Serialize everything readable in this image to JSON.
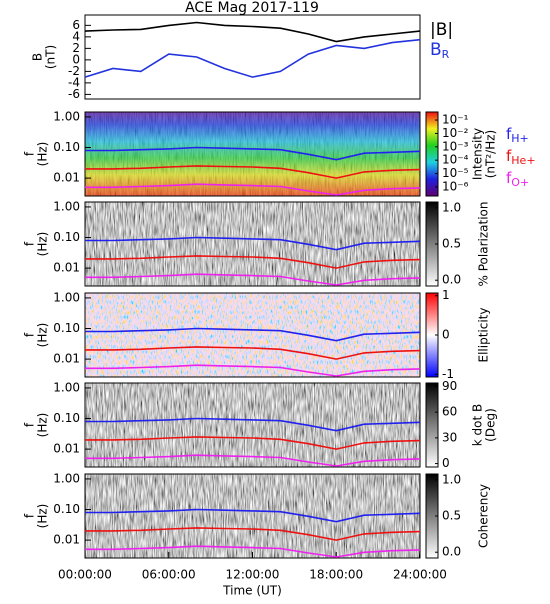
{
  "chart_data": [
    {
      "type": "line",
      "title": "ACE Mag 2017-119",
      "ylabel": [
        "B",
        "(nT)"
      ],
      "x": [
        0,
        2,
        4,
        6,
        8,
        10,
        12,
        14,
        16,
        18,
        20,
        22,
        24
      ],
      "xlim": [
        0,
        24
      ],
      "ylim": [
        -6.8,
        7.8
      ],
      "yticks": [
        -6,
        -4,
        -2,
        0,
        2,
        4,
        6
      ],
      "series": [
        {
          "name": "|B|",
          "color": "#000000",
          "values": [
            5,
            5.2,
            5.3,
            6,
            6.5,
            6,
            5.8,
            5.5,
            4.5,
            3.2,
            4,
            4.5,
            5
          ]
        },
        {
          "name": "B",
          "name_sub": "R",
          "color": "#2233dd",
          "values": [
            -3,
            -1.5,
            -2,
            1,
            0.5,
            -1.5,
            -3,
            -2,
            1,
            2.5,
            2,
            3,
            3.5
          ]
        }
      ]
    },
    {
      "type": "spectrogram",
      "ylabel": [
        "f",
        "(Hz)"
      ],
      "ylog": true,
      "colormap": "rainbow",
      "x": [
        0,
        2,
        4,
        6,
        8,
        10,
        12,
        14,
        16,
        18,
        20,
        22,
        24
      ],
      "xlim": [
        0,
        24
      ],
      "ylim": [
        0.0026,
        1.45
      ],
      "yticks": [
        {
          "value": 1,
          "label": "1.00"
        },
        {
          "value": 0.1,
          "label": "0.10"
        },
        {
          "value": 0.01,
          "label": "0.01"
        }
      ],
      "clabel": [
        "Intensity",
        "(nT²/Hz)"
      ],
      "clog": true,
      "clim": [
        2.1e-07,
        0.4
      ],
      "cticks": [
        {
          "value": 0.1,
          "label": "10⁻¹"
        },
        {
          "value": 0.01,
          "label": "10⁻²"
        },
        {
          "value": 0.001,
          "label": "10⁻³"
        },
        {
          "value": 0.0001,
          "label": "10⁻⁴"
        },
        {
          "value": 1e-05,
          "label": "10⁻⁵"
        },
        {
          "value": 1e-06,
          "label": "10⁻⁶"
        }
      ],
      "series": [
        {
          "name": "f",
          "name_sub": "H+",
          "color": "#2222ee",
          "values": [
            0.08,
            0.08,
            0.085,
            0.09,
            0.1,
            0.095,
            0.09,
            0.085,
            0.06,
            0.04,
            0.065,
            0.07,
            0.075
          ]
        },
        {
          "name": "f",
          "name_sub": "He+",
          "color": "#ee1111",
          "values": [
            0.02,
            0.02,
            0.021,
            0.023,
            0.025,
            0.024,
            0.023,
            0.021,
            0.015,
            0.01,
            0.016,
            0.018,
            0.019
          ]
        },
        {
          "name": "f",
          "name_sub": "O+",
          "color": "#ee22ee",
          "values": [
            0.005,
            0.005,
            0.0053,
            0.0057,
            0.0063,
            0.006,
            0.0057,
            0.0053,
            0.0038,
            0.0028,
            0.004,
            0.0045,
            0.0048
          ]
        }
      ]
    },
    {
      "type": "spectrogram",
      "ylabel": [
        "f",
        "(Hz)"
      ],
      "ylog": true,
      "colormap": "gray",
      "x": [
        0,
        2,
        4,
        6,
        8,
        10,
        12,
        14,
        16,
        18,
        20,
        22,
        24
      ],
      "xlim": [
        0,
        24
      ],
      "ylim": [
        0.0026,
        1.45
      ],
      "yticks": [
        {
          "value": 1,
          "label": "1.00"
        },
        {
          "value": 0.1,
          "label": "0.10"
        },
        {
          "value": 0.01,
          "label": "0.01"
        }
      ],
      "clabel": [
        "% Polarization"
      ],
      "clim": [
        -0.08,
        1.08
      ],
      "cticks": [
        {
          "value": 1,
          "label": "1.0"
        },
        0.5,
        {
          "value": 0,
          "label": "0.0"
        }
      ],
      "series": [
        {
          "color": "#2222ee",
          "values": [
            0.08,
            0.08,
            0.085,
            0.09,
            0.1,
            0.095,
            0.09,
            0.085,
            0.06,
            0.04,
            0.065,
            0.07,
            0.075
          ]
        },
        {
          "color": "#ee1111",
          "values": [
            0.02,
            0.02,
            0.021,
            0.023,
            0.025,
            0.024,
            0.023,
            0.021,
            0.015,
            0.01,
            0.016,
            0.018,
            0.019
          ]
        },
        {
          "color": "#ee22ee",
          "values": [
            0.005,
            0.005,
            0.0053,
            0.0057,
            0.0063,
            0.006,
            0.0057,
            0.0053,
            0.0038,
            0.0028,
            0.004,
            0.0045,
            0.0048
          ]
        }
      ]
    },
    {
      "type": "spectrogram",
      "ylabel": [
        "f",
        "(Hz)"
      ],
      "ylog": true,
      "colormap": "bwr",
      "x": [
        0,
        2,
        4,
        6,
        8,
        10,
        12,
        14,
        16,
        18,
        20,
        22,
        24
      ],
      "xlim": [
        0,
        24
      ],
      "ylim": [
        0.0026,
        1.45
      ],
      "yticks": [
        {
          "value": 1,
          "label": "1.00"
        },
        {
          "value": 0.1,
          "label": "0.10"
        },
        {
          "value": 0.01,
          "label": "0.01"
        }
      ],
      "clabel": [
        "Ellipticity"
      ],
      "clim": [
        -1.07,
        1.07
      ],
      "cticks": [
        1,
        0,
        -1
      ],
      "series": [
        {
          "color": "#2222ee",
          "values": [
            0.08,
            0.08,
            0.085,
            0.09,
            0.1,
            0.095,
            0.09,
            0.085,
            0.06,
            0.04,
            0.065,
            0.07,
            0.075
          ]
        },
        {
          "color": "#ee1111",
          "values": [
            0.02,
            0.02,
            0.021,
            0.023,
            0.025,
            0.024,
            0.023,
            0.021,
            0.015,
            0.01,
            0.016,
            0.018,
            0.019
          ]
        },
        {
          "color": "#ee22ee",
          "values": [
            0.005,
            0.005,
            0.0053,
            0.0057,
            0.0063,
            0.006,
            0.0057,
            0.0053,
            0.0038,
            0.0028,
            0.004,
            0.0045,
            0.0048
          ]
        }
      ]
    },
    {
      "type": "spectrogram",
      "ylabel": [
        "f",
        "(Hz)"
      ],
      "ylog": true,
      "colormap": "gray",
      "x": [
        0,
        2,
        4,
        6,
        8,
        10,
        12,
        14,
        16,
        18,
        20,
        22,
        24
      ],
      "xlim": [
        0,
        24
      ],
      "ylim": [
        0.0026,
        1.45
      ],
      "yticks": [
        {
          "value": 1,
          "label": "1.00"
        },
        {
          "value": 0.1,
          "label": "0.10"
        },
        {
          "value": 0.01,
          "label": "0.01"
        }
      ],
      "clabel": [
        "k dot B",
        "(Deg)"
      ],
      "clim": [
        -4,
        94
      ],
      "cticks": [
        90,
        60,
        30,
        0
      ],
      "series": [
        {
          "color": "#2222ee",
          "values": [
            0.08,
            0.08,
            0.085,
            0.09,
            0.1,
            0.095,
            0.09,
            0.085,
            0.06,
            0.04,
            0.065,
            0.07,
            0.075
          ]
        },
        {
          "color": "#ee1111",
          "values": [
            0.02,
            0.02,
            0.021,
            0.023,
            0.025,
            0.024,
            0.023,
            0.021,
            0.015,
            0.01,
            0.016,
            0.018,
            0.019
          ]
        },
        {
          "color": "#ee22ee",
          "values": [
            0.005,
            0.005,
            0.0053,
            0.0057,
            0.0063,
            0.006,
            0.0057,
            0.0053,
            0.0038,
            0.0028,
            0.004,
            0.0045,
            0.0048
          ]
        }
      ]
    },
    {
      "type": "spectrogram",
      "ylabel": [
        "f",
        "(Hz)"
      ],
      "ylog": true,
      "colormap": "gray",
      "x": [
        0,
        2,
        4,
        6,
        8,
        10,
        12,
        14,
        16,
        18,
        20,
        22,
        24
      ],
      "xlim": [
        0,
        24
      ],
      "xticks": [
        {
          "value": 0,
          "label": "00:00:00"
        },
        {
          "value": 6,
          "label": "06:00:00"
        },
        {
          "value": 12,
          "label": "12:00:00"
        },
        {
          "value": 18,
          "label": "18:00:00"
        },
        {
          "value": 24,
          "label": "24:00:00"
        }
      ],
      "xlabel": "Time (UT)",
      "ylim": [
        0.0026,
        1.45
      ],
      "yticks": [
        {
          "value": 1,
          "label": "1.00"
        },
        {
          "value": 0.1,
          "label": "0.10"
        },
        {
          "value": 0.01,
          "label": "0.01"
        }
      ],
      "clabel": [
        "Coherency"
      ],
      "clim": [
        -0.08,
        1.08
      ],
      "cticks": [
        {
          "value": 1,
          "label": "1.0"
        },
        0.5,
        {
          "value": 0,
          "label": "0.0"
        }
      ],
      "series": [
        {
          "color": "#2222ee",
          "values": [
            0.08,
            0.08,
            0.085,
            0.09,
            0.1,
            0.095,
            0.09,
            0.085,
            0.06,
            0.04,
            0.065,
            0.07,
            0.075
          ]
        },
        {
          "color": "#ee1111",
          "values": [
            0.02,
            0.02,
            0.021,
            0.023,
            0.025,
            0.024,
            0.023,
            0.021,
            0.015,
            0.01,
            0.016,
            0.018,
            0.019
          ]
        },
        {
          "color": "#ee22ee",
          "values": [
            0.005,
            0.005,
            0.0053,
            0.0057,
            0.0063,
            0.006,
            0.0057,
            0.0053,
            0.0038,
            0.0028,
            0.004,
            0.0045,
            0.0048
          ]
        }
      ]
    }
  ]
}
